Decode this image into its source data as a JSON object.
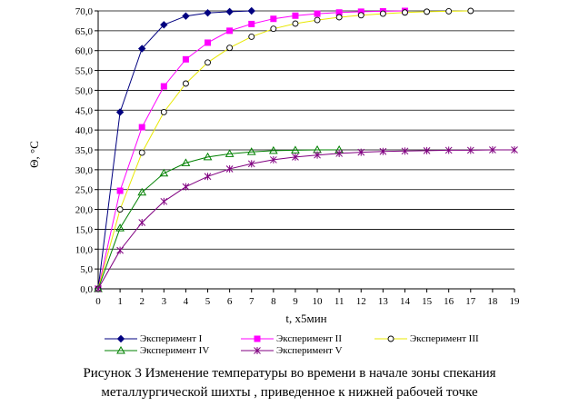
{
  "chart_data": {
    "type": "line",
    "xlabel": "t, x5мин",
    "ylabel": "Θ, °C",
    "xlim": [
      0,
      19
    ],
    "ylim": [
      0,
      70
    ],
    "x_ticks": [
      "0",
      "1",
      "2",
      "3",
      "4",
      "5",
      "6",
      "7",
      "8",
      "9",
      "10",
      "11",
      "12",
      "13",
      "14",
      "15",
      "16",
      "17",
      "18",
      "19"
    ],
    "y_ticks": [
      "0,0",
      "5,0",
      "10,0",
      "15,0",
      "20,0",
      "25,0",
      "30,0",
      "35,0",
      "40,0",
      "45,0",
      "50,0",
      "55,0",
      "60,0",
      "65,0",
      "70,0"
    ],
    "grid": "horizontal",
    "legend_position": "bottom",
    "series": [
      {
        "name": "Эксперимент I",
        "color": "#000080",
        "marker": "diamond",
        "x": [
          0,
          1,
          2,
          3,
          4,
          5,
          6,
          7
        ],
        "y": [
          0,
          44.5,
          60.5,
          66.5,
          68.7,
          69.5,
          69.8,
          70.0
        ]
      },
      {
        "name": "Эксперимент II",
        "color": "#ff00ff",
        "marker": "square",
        "x": [
          0,
          1,
          2,
          3,
          4,
          5,
          6,
          7,
          8,
          9,
          10,
          11,
          12,
          13,
          14
        ],
        "y": [
          0,
          24.7,
          40.7,
          51.0,
          57.8,
          62.0,
          65.0,
          66.7,
          68.0,
          68.8,
          69.3,
          69.6,
          69.8,
          69.9,
          70.0
        ]
      },
      {
        "name": "Эксперимент III",
        "color": "#e8e800",
        "marker": "circle",
        "x": [
          0,
          1,
          2,
          3,
          4,
          5,
          6,
          7,
          8,
          9,
          10,
          11,
          12,
          13,
          14,
          15,
          16,
          17
        ],
        "y": [
          0,
          20.0,
          34.3,
          44.5,
          51.7,
          57.0,
          60.7,
          63.5,
          65.5,
          66.8,
          67.7,
          68.4,
          68.9,
          69.3,
          69.6,
          69.8,
          69.9,
          70.0
        ]
      },
      {
        "name": "Эксперимент IV",
        "color": "#008000",
        "marker": "triangle",
        "x": [
          0,
          1,
          2,
          3,
          4,
          5,
          6,
          7,
          8,
          9,
          10,
          11
        ],
        "y": [
          0,
          15.3,
          24.3,
          29.1,
          31.7,
          33.2,
          34.0,
          34.5,
          34.8,
          34.9,
          35.0,
          35.0
        ]
      },
      {
        "name": "Эксперимент V",
        "color": "#800080",
        "marker": "star",
        "x": [
          0,
          1,
          2,
          3,
          4,
          5,
          6,
          7,
          8,
          9,
          10,
          11,
          12,
          13,
          14,
          15,
          16,
          17,
          18,
          19
        ],
        "y": [
          0,
          9.7,
          16.7,
          22.0,
          25.7,
          28.3,
          30.2,
          31.5,
          32.5,
          33.2,
          33.7,
          34.1,
          34.4,
          34.6,
          34.7,
          34.8,
          34.9,
          34.9,
          35.0,
          35.0
        ]
      }
    ]
  },
  "caption": {
    "line1": "Рисунок 3 Изменение температуры во времени в начале зоны  спекания",
    "line2": "металлургической шихты , приведенное к нижней рабочей точке"
  }
}
